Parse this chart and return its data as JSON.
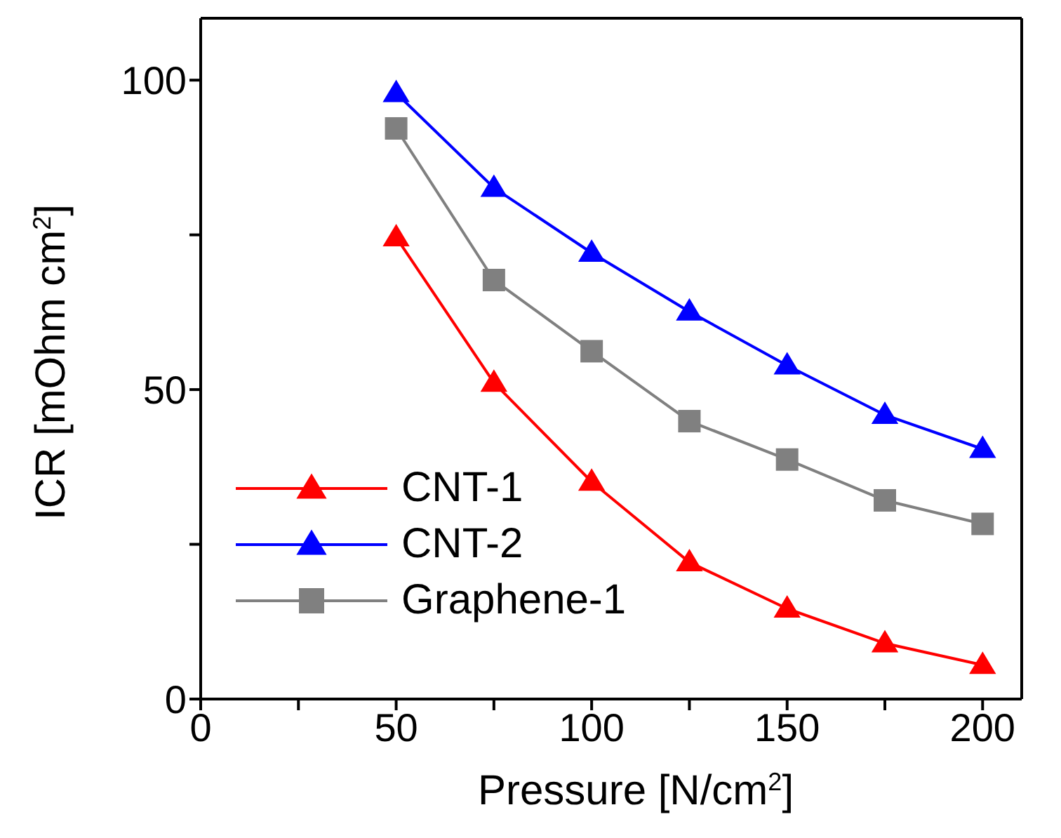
{
  "chart_data": {
    "type": "line",
    "xlabel": "Pressure [N/cm$^{2}$]",
    "ylabel": "ICR [mOhm cm$^{2}$]",
    "x": [
      50,
      75,
      100,
      125,
      150,
      175,
      200
    ],
    "series": [
      {
        "name": "CNT-1",
        "color": "#ff0000",
        "marker": "triangle",
        "values": [
          74.6,
          51.1,
          35.1,
          22.1,
          14.6,
          9.0,
          5.5
        ]
      },
      {
        "name": "CNT-2",
        "color": "#0000ff",
        "marker": "triangle",
        "values": [
          97.9,
          82.6,
          72.1,
          62.6,
          53.9,
          45.9,
          40.4
        ]
      },
      {
        "name": "Graphene-1",
        "color": "#808080",
        "marker": "square",
        "values": [
          92.2,
          67.7,
          56.2,
          44.9,
          38.7,
          32.1,
          28.3
        ]
      }
    ],
    "xlim": [
      0,
      210
    ],
    "ylim": [
      0,
      110
    ],
    "xticks": [
      0,
      {
        "value": 25,
        "label": null
      },
      50,
      {
        "value": 75,
        "label": null
      },
      100,
      {
        "value": 125,
        "label": null
      },
      150,
      {
        "value": 175,
        "label": null
      },
      200
    ],
    "yticks": [
      0,
      {
        "value": 25,
        "label": null
      },
      50,
      {
        "value": 75,
        "label": null
      },
      100
    ],
    "legend": "bottom left",
    "line_style": "solid"
  }
}
